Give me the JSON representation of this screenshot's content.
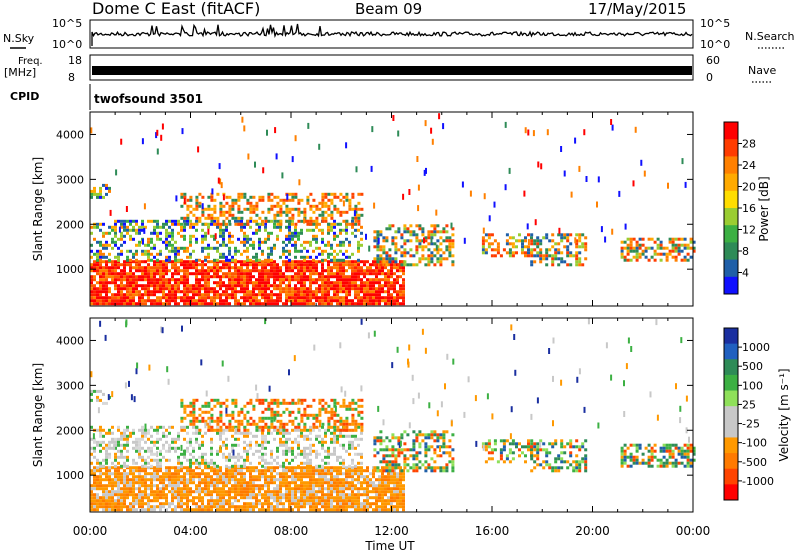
{
  "header": {
    "site": "Dome C East (fitACF)",
    "beam": "Beam 09",
    "date": "17/May/2015"
  },
  "strips": {
    "nsky": {
      "label": "N.Sky",
      "ticks": [
        "10^5",
        "10^0"
      ]
    },
    "nsearch": {
      "label": "N.Search",
      "ticks": [
        "10^5",
        "10^0"
      ]
    },
    "freq": {
      "label_line1": "Freq.",
      "label_line2": "[MHz]",
      "ticks": [
        "18",
        "8"
      ]
    },
    "nave": {
      "label": "Nave",
      "ticks": [
        "60",
        "0"
      ]
    },
    "cpid": {
      "label": "CPID",
      "value": "twofsound 3501"
    }
  },
  "chart_data": [
    {
      "type": "heatmap",
      "name": "power",
      "ylabel": "Slant Range [km]",
      "yticks": [
        1000,
        2000,
        3000,
        4000
      ],
      "ylim": [
        180,
        4500
      ],
      "colorbar": {
        "label": "Power [dB]",
        "ticks": [
          "28",
          "24",
          "20",
          "16",
          "12",
          "8",
          "4"
        ],
        "colors": [
          "#ff0000",
          "#ff3c00",
          "#ff8000",
          "#ffaa00",
          "#ffdd00",
          "#9acd32",
          "#3cb043",
          "#2e8b57",
          "#1f5fa8",
          "#1010ff"
        ]
      }
    },
    {
      "type": "heatmap",
      "name": "velocity",
      "ylabel": "Slant Range [km]",
      "yticks": [
        1000,
        2000,
        3000,
        4000
      ],
      "ylim": [
        180,
        4500
      ],
      "colorbar": {
        "label": "Velocity [m s⁻¹]",
        "ticks": [
          "1000",
          "500",
          "100",
          "25",
          "-25",
          "-100",
          "-500",
          "-1000"
        ],
        "colors": [
          "#1a2fa0",
          "#2060c0",
          "#2e8b57",
          "#3cb043",
          "#8fe05a",
          "#c8c8c8",
          "#c8c8c8",
          "#ff9900",
          "#ff7a00",
          "#ff4400",
          "#ff0000"
        ]
      }
    }
  ],
  "xaxis": {
    "label": "Time UT",
    "ticks": [
      "00:00",
      "04:00",
      "08:00",
      "12:00",
      "16:00",
      "20:00",
      "00:00"
    ]
  }
}
